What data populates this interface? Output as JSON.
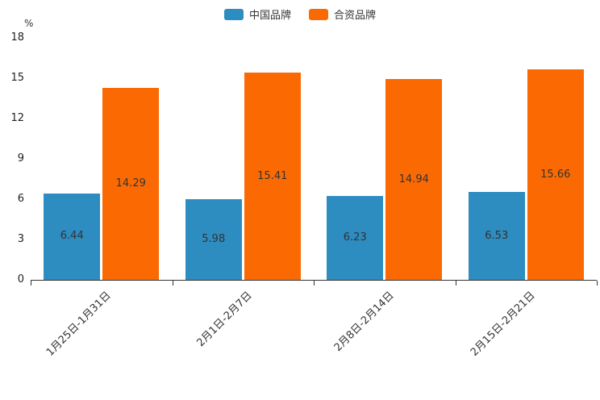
{
  "chart_data": {
    "type": "bar",
    "title": "",
    "unit_label": "%",
    "categories": [
      "1月25日-1月31日",
      "2月1日-2月7日",
      "2月8日-2月14日",
      "2月15日-2月21日"
    ],
    "series": [
      {
        "name": "中国品牌",
        "key": "china-brand",
        "color": "#2d8cc0",
        "values": [
          6.44,
          5.98,
          6.23,
          6.53
        ]
      },
      {
        "name": "合资品牌",
        "key": "joint-venture-brand",
        "color": "#fb6a02",
        "values": [
          14.29,
          15.41,
          14.94,
          15.66
        ]
      }
    ],
    "ylim": [
      0,
      18
    ],
    "ytick_step": 3,
    "legend_position": "top",
    "grid": false
  }
}
